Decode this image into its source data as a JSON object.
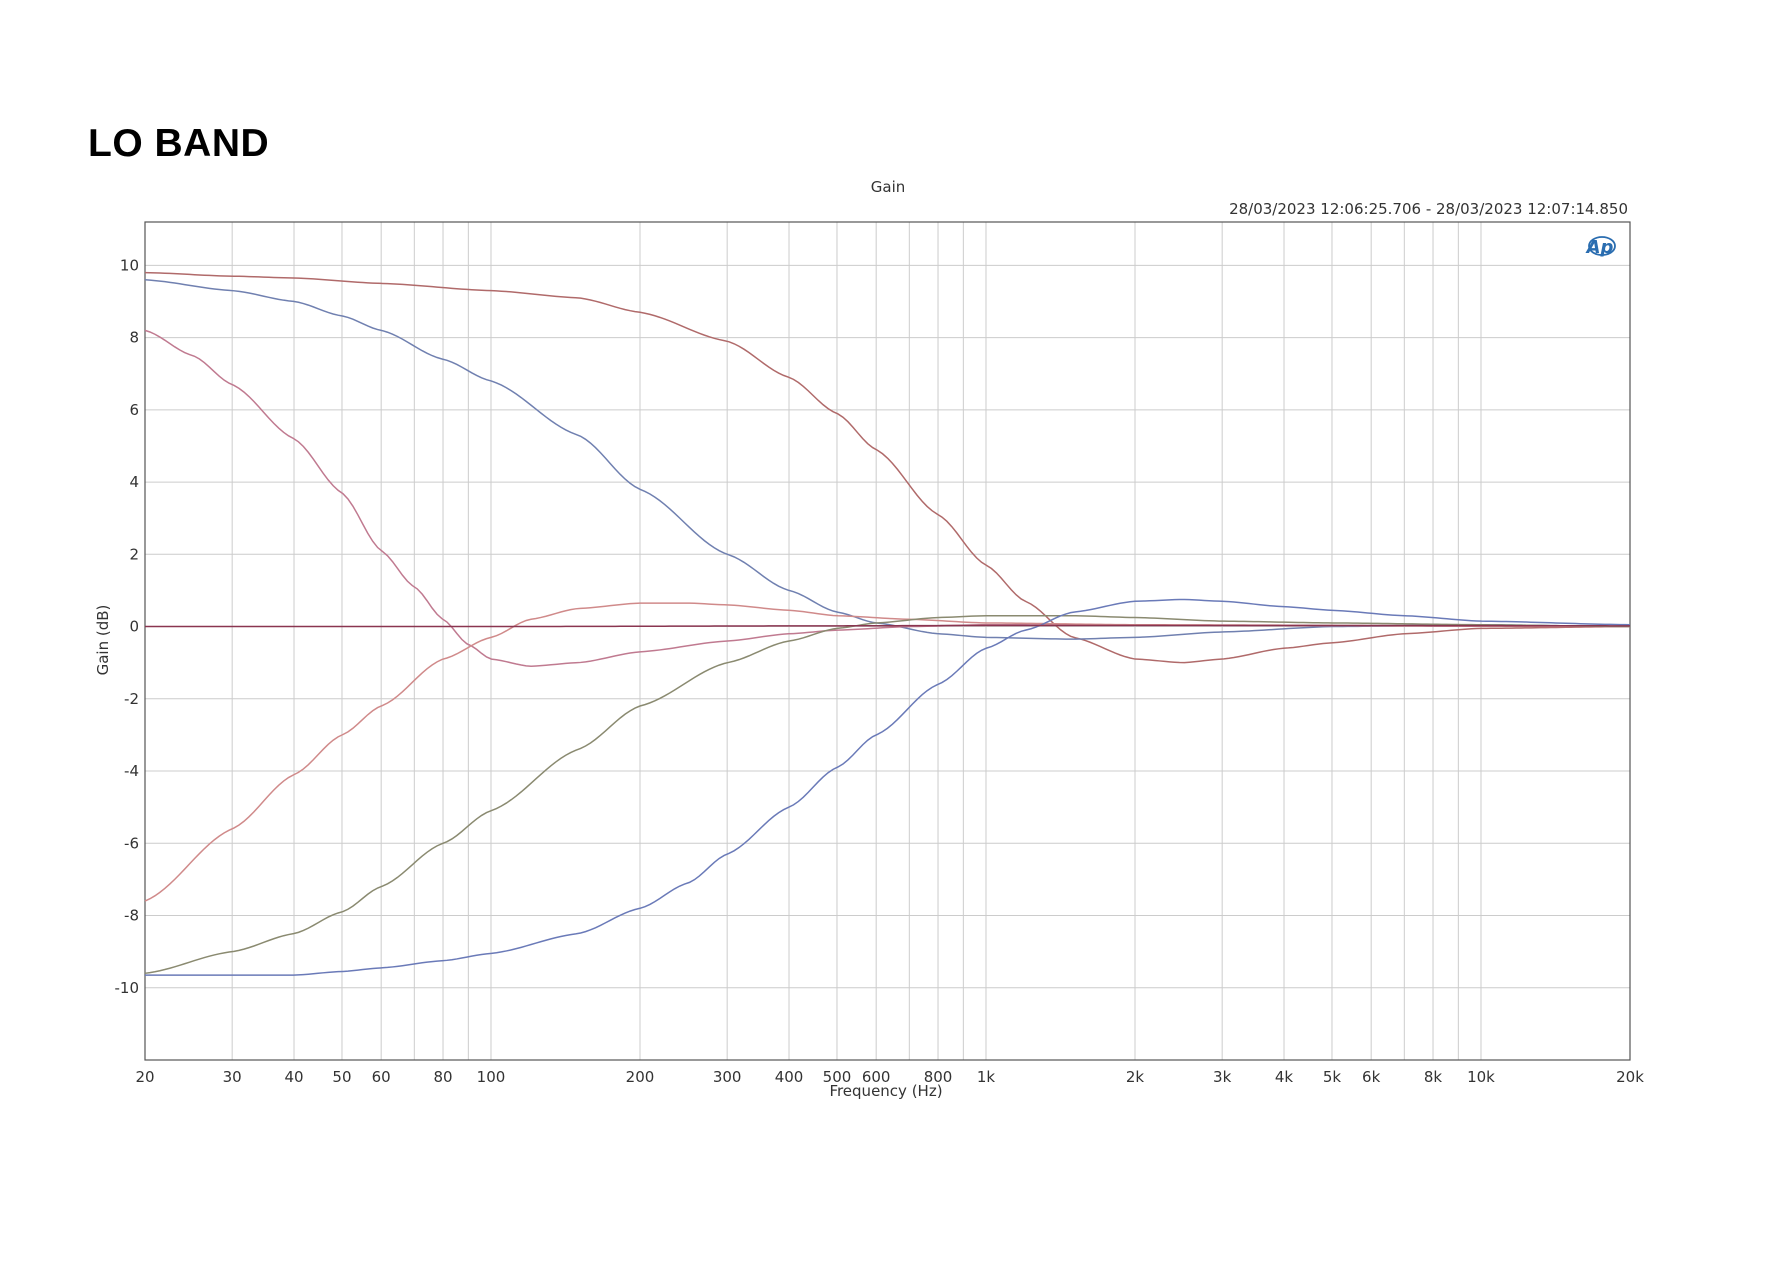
{
  "page": {
    "heading": "LO BAND"
  },
  "chart_data": {
    "type": "line",
    "title": "Gain",
    "subtitle": "28/03/2023 12:06:25.706 - 28/03/2023 12:07:14.850",
    "logo_text": "Ap",
    "xlabel": "Frequency (Hz)",
    "ylabel": "Gain (dB)",
    "x_scale": "log",
    "xlim": [
      20,
      20000
    ],
    "ylim": [
      -12,
      11.2
    ],
    "grid": true,
    "legend": "none",
    "x_ticks": [
      {
        "v": 20,
        "label": "20"
      },
      {
        "v": 30,
        "label": "30"
      },
      {
        "v": 40,
        "label": "40"
      },
      {
        "v": 50,
        "label": "50"
      },
      {
        "v": 60,
        "label": "60"
      },
      {
        "v": 80,
        "label": "80"
      },
      {
        "v": 100,
        "label": "100"
      },
      {
        "v": 200,
        "label": "200"
      },
      {
        "v": 300,
        "label": "300"
      },
      {
        "v": 400,
        "label": "400"
      },
      {
        "v": 500,
        "label": "500"
      },
      {
        "v": 600,
        "label": "600"
      },
      {
        "v": 800,
        "label": "800"
      },
      {
        "v": 1000,
        "label": "1k"
      },
      {
        "v": 2000,
        "label": "2k"
      },
      {
        "v": 3000,
        "label": "3k"
      },
      {
        "v": 4000,
        "label": "4k"
      },
      {
        "v": 5000,
        "label": "5k"
      },
      {
        "v": 6000,
        "label": "6k"
      },
      {
        "v": 8000,
        "label": "8k"
      },
      {
        "v": 10000,
        "label": "10k"
      },
      {
        "v": 20000,
        "label": "20k"
      }
    ],
    "x_minor": [
      70,
      90,
      700,
      900,
      7000,
      9000
    ],
    "y_ticks": [
      {
        "v": 10,
        "label": "10"
      },
      {
        "v": 8,
        "label": "8"
      },
      {
        "v": 6,
        "label": "6"
      },
      {
        "v": 4,
        "label": "4"
      },
      {
        "v": 2,
        "label": "2"
      },
      {
        "v": 0,
        "label": "0"
      },
      {
        "v": -2,
        "label": "-2"
      },
      {
        "v": -4,
        "label": "-4"
      },
      {
        "v": -6,
        "label": "-6"
      },
      {
        "v": -8,
        "label": "-8"
      },
      {
        "v": -10,
        "label": "-10"
      }
    ],
    "series": [
      {
        "color": "#b06a6a",
        "points": [
          [
            20,
            9.8
          ],
          [
            30,
            9.7
          ],
          [
            40,
            9.65
          ],
          [
            60,
            9.5
          ],
          [
            100,
            9.3
          ],
          [
            150,
            9.1
          ],
          [
            200,
            8.7
          ],
          [
            300,
            7.9
          ],
          [
            400,
            6.9
          ],
          [
            500,
            5.9
          ],
          [
            600,
            4.9
          ],
          [
            800,
            3.1
          ],
          [
            1000,
            1.7
          ],
          [
            1200,
            0.7
          ],
          [
            1500,
            -0.3
          ],
          [
            2000,
            -0.9
          ],
          [
            2500,
            -1.0
          ],
          [
            3000,
            -0.9
          ],
          [
            4000,
            -0.6
          ],
          [
            5000,
            -0.45
          ],
          [
            7000,
            -0.2
          ],
          [
            10000,
            -0.05
          ],
          [
            20000,
            0.0
          ]
        ]
      },
      {
        "color": "#7080b0",
        "points": [
          [
            20,
            9.6
          ],
          [
            30,
            9.3
          ],
          [
            40,
            9.0
          ],
          [
            50,
            8.6
          ],
          [
            60,
            8.2
          ],
          [
            80,
            7.4
          ],
          [
            100,
            6.8
          ],
          [
            150,
            5.3
          ],
          [
            200,
            3.8
          ],
          [
            300,
            2.0
          ],
          [
            400,
            1.0
          ],
          [
            500,
            0.4
          ],
          [
            600,
            0.1
          ],
          [
            800,
            -0.2
          ],
          [
            1000,
            -0.3
          ],
          [
            1500,
            -0.35
          ],
          [
            2000,
            -0.3
          ],
          [
            3000,
            -0.15
          ],
          [
            5000,
            0.0
          ],
          [
            10000,
            0.05
          ],
          [
            20000,
            0.0
          ]
        ]
      },
      {
        "color": "#c07a90",
        "points": [
          [
            20,
            8.2
          ],
          [
            25,
            7.5
          ],
          [
            30,
            6.7
          ],
          [
            40,
            5.2
          ],
          [
            50,
            3.7
          ],
          [
            60,
            2.1
          ],
          [
            70,
            1.1
          ],
          [
            80,
            0.2
          ],
          [
            90,
            -0.5
          ],
          [
            100,
            -0.9
          ],
          [
            120,
            -1.1
          ],
          [
            150,
            -1.0
          ],
          [
            200,
            -0.7
          ],
          [
            300,
            -0.4
          ],
          [
            400,
            -0.2
          ],
          [
            500,
            -0.1
          ],
          [
            700,
            0.0
          ],
          [
            1000,
            0.05
          ],
          [
            20000,
            0.0
          ]
        ]
      },
      {
        "color": "#d08a8a",
        "points": [
          [
            20,
            -7.6
          ],
          [
            30,
            -5.6
          ],
          [
            40,
            -4.1
          ],
          [
            50,
            -3.0
          ],
          [
            60,
            -2.2
          ],
          [
            80,
            -0.9
          ],
          [
            100,
            -0.3
          ],
          [
            120,
            0.2
          ],
          [
            150,
            0.5
          ],
          [
            200,
            0.65
          ],
          [
            250,
            0.65
          ],
          [
            300,
            0.6
          ],
          [
            400,
            0.45
          ],
          [
            500,
            0.3
          ],
          [
            700,
            0.2
          ],
          [
            1000,
            0.1
          ],
          [
            2000,
            0.05
          ],
          [
            20000,
            0.0
          ]
        ]
      },
      {
        "color": "#8a8a70",
        "points": [
          [
            20,
            -9.6
          ],
          [
            30,
            -9.0
          ],
          [
            40,
            -8.5
          ],
          [
            50,
            -7.9
          ],
          [
            60,
            -7.2
          ],
          [
            80,
            -6.0
          ],
          [
            100,
            -5.1
          ],
          [
            150,
            -3.4
          ],
          [
            200,
            -2.2
          ],
          [
            300,
            -1.0
          ],
          [
            400,
            -0.4
          ],
          [
            500,
            -0.05
          ],
          [
            600,
            0.1
          ],
          [
            800,
            0.25
          ],
          [
            1000,
            0.3
          ],
          [
            1500,
            0.3
          ],
          [
            2000,
            0.25
          ],
          [
            3000,
            0.15
          ],
          [
            5000,
            0.1
          ],
          [
            10000,
            0.05
          ],
          [
            20000,
            0.0
          ]
        ]
      },
      {
        "color": "#6a7ab8",
        "points": [
          [
            20,
            -9.65
          ],
          [
            30,
            -9.65
          ],
          [
            40,
            -9.65
          ],
          [
            50,
            -9.55
          ],
          [
            60,
            -9.45
          ],
          [
            80,
            -9.25
          ],
          [
            100,
            -9.05
          ],
          [
            150,
            -8.5
          ],
          [
            200,
            -7.8
          ],
          [
            250,
            -7.1
          ],
          [
            300,
            -6.3
          ],
          [
            400,
            -5.0
          ],
          [
            500,
            -3.9
          ],
          [
            600,
            -3.0
          ],
          [
            800,
            -1.6
          ],
          [
            1000,
            -0.6
          ],
          [
            1200,
            -0.1
          ],
          [
            1500,
            0.4
          ],
          [
            2000,
            0.7
          ],
          [
            2500,
            0.75
          ],
          [
            3000,
            0.7
          ],
          [
            4000,
            0.55
          ],
          [
            5000,
            0.45
          ],
          [
            7000,
            0.3
          ],
          [
            10000,
            0.15
          ],
          [
            20000,
            0.05
          ]
        ]
      },
      {
        "color": "#8a3550",
        "points": [
          [
            20,
            0.0
          ],
          [
            100,
            0.0
          ],
          [
            500,
            0.02
          ],
          [
            1000,
            0.03
          ],
          [
            5000,
            0.03
          ],
          [
            20000,
            0.02
          ]
        ]
      }
    ]
  }
}
